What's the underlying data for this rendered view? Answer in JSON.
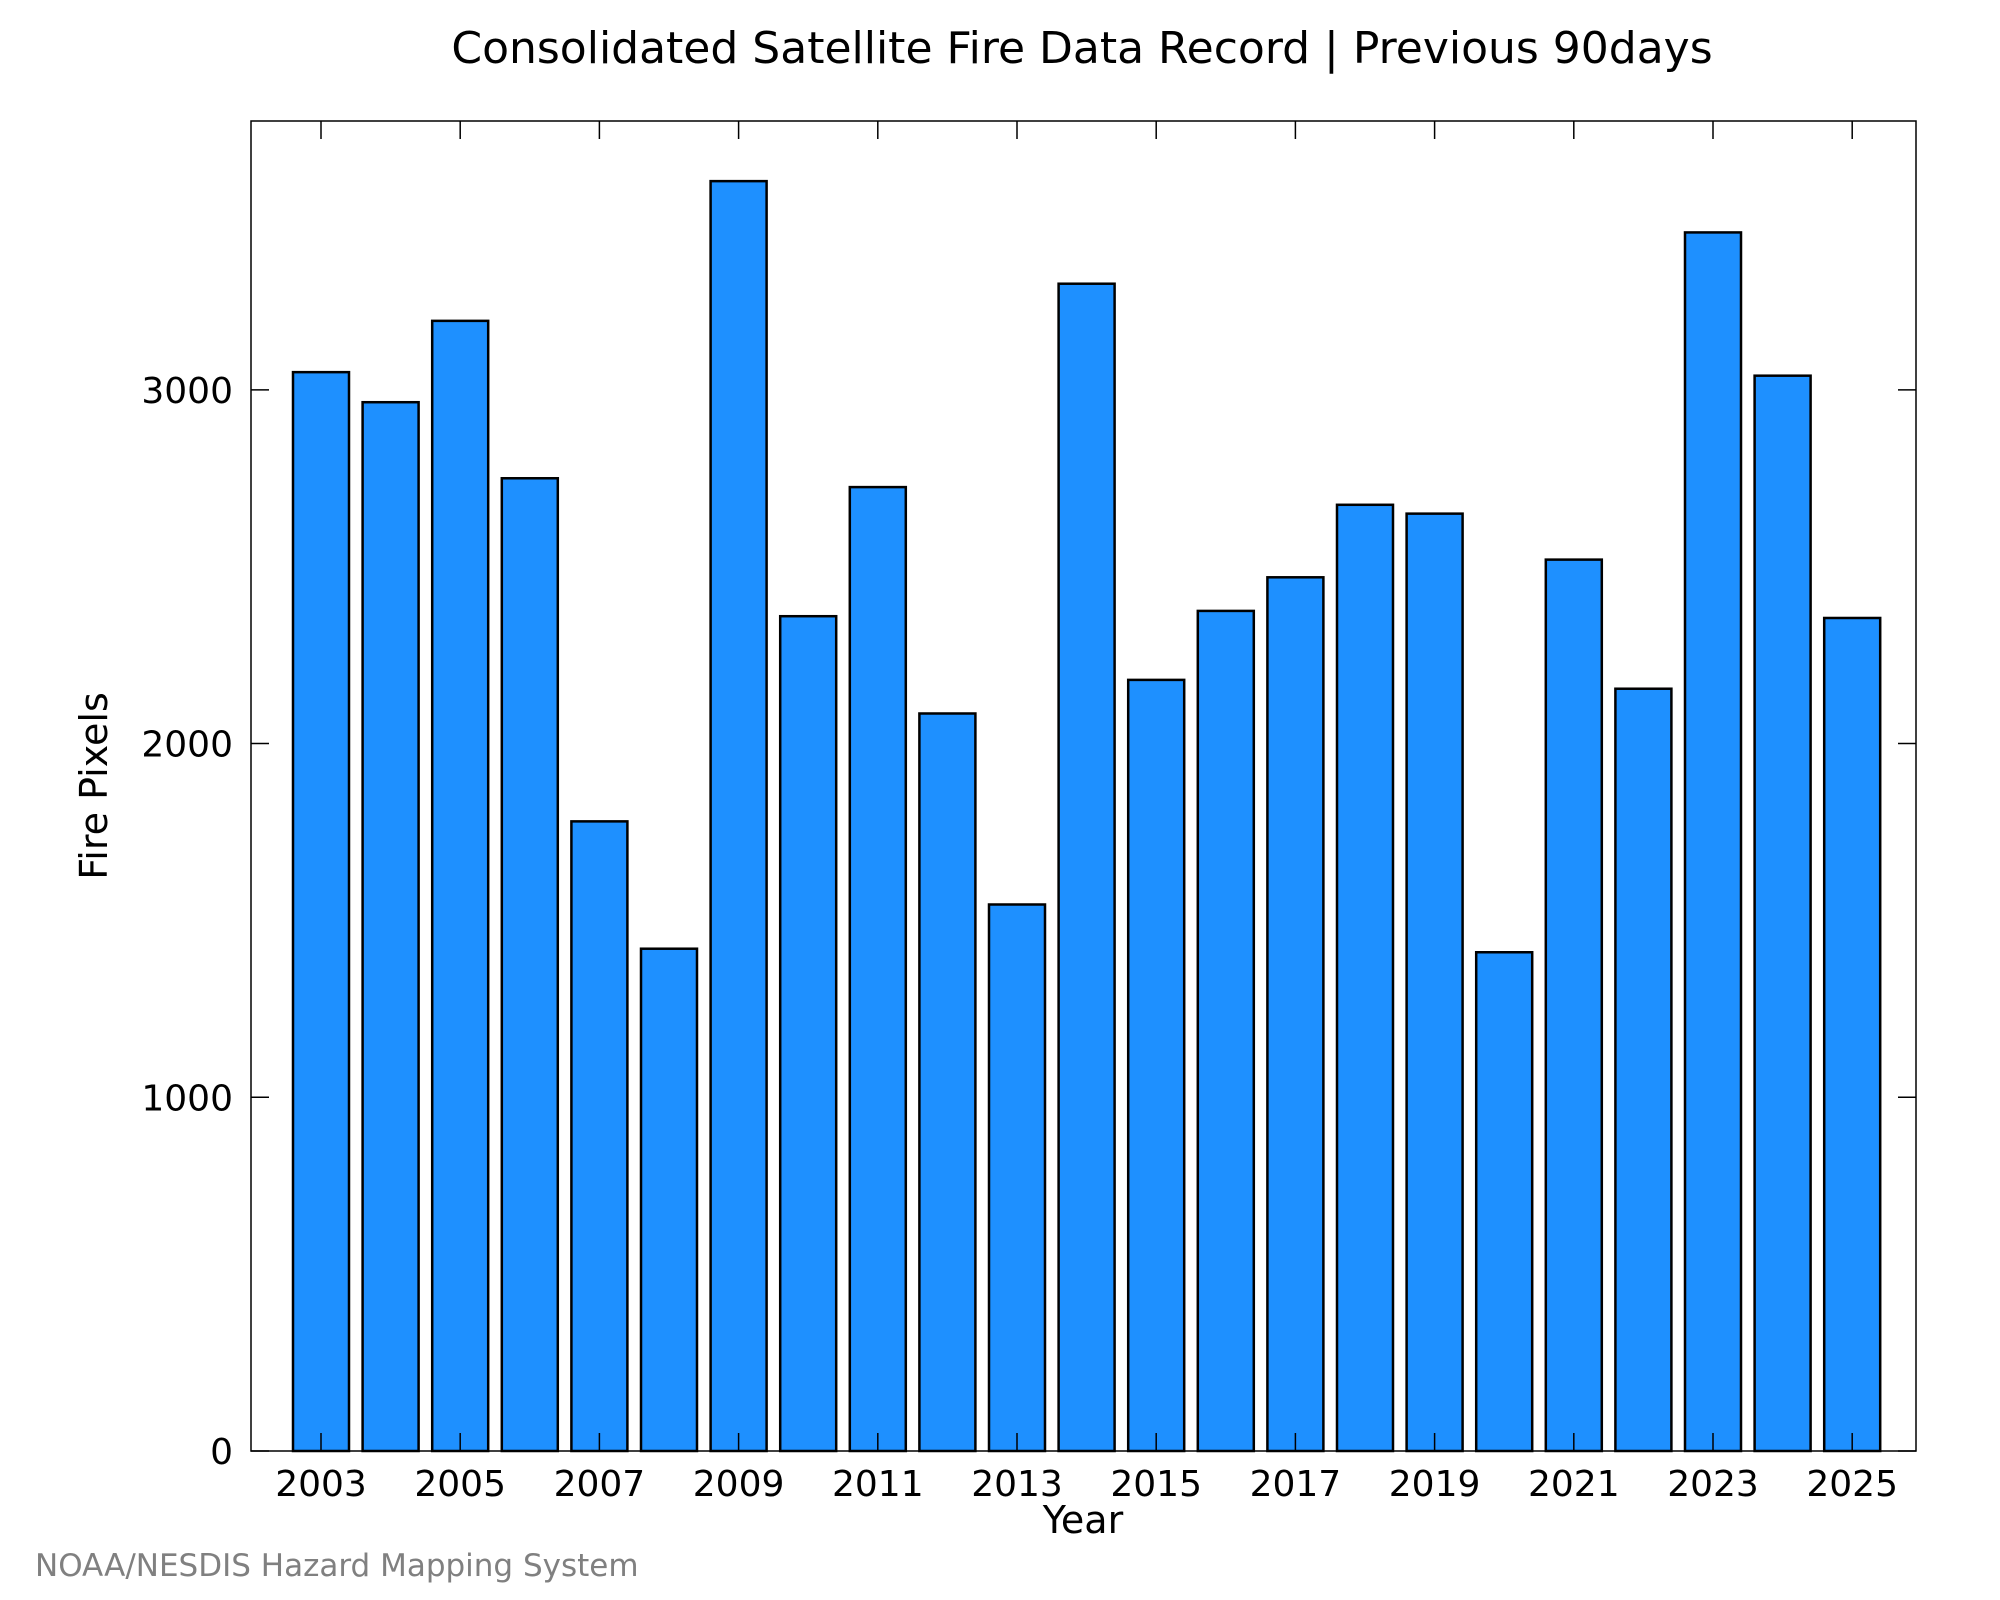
{
  "chart_data": {
    "type": "bar",
    "title": "Consolidated Satellite Fire Data Record | Previous 90days",
    "xlabel": "Year",
    "ylabel": "Fire Pixels",
    "credit": "NOAA/NESDIS Hazard Mapping System",
    "categories": [
      "2003",
      "2004",
      "2005",
      "2006",
      "2007",
      "2008",
      "2009",
      "2010",
      "2011",
      "2012",
      "2013",
      "2014",
      "2015",
      "2016",
      "2017",
      "2018",
      "2019",
      "2020",
      "2021",
      "2022",
      "2023",
      "2024",
      "2025"
    ],
    "values": [
      3050,
      2965,
      3195,
      2750,
      1780,
      1420,
      3590,
      2360,
      2725,
      2085,
      1545,
      3300,
      2180,
      2375,
      2470,
      2675,
      2650,
      1410,
      2520,
      2155,
      3445,
      3040,
      2355
    ],
    "x_tick_labels": [
      "2003",
      "2005",
      "2007",
      "2009",
      "2011",
      "2013",
      "2015",
      "2017",
      "2019",
      "2021",
      "2023",
      "2025"
    ],
    "y_ticks": [
      0,
      1000,
      2000,
      3000
    ],
    "ylim": [
      0,
      3760
    ],
    "bar_color": "#1e90ff",
    "grid": false,
    "legend": "none"
  }
}
